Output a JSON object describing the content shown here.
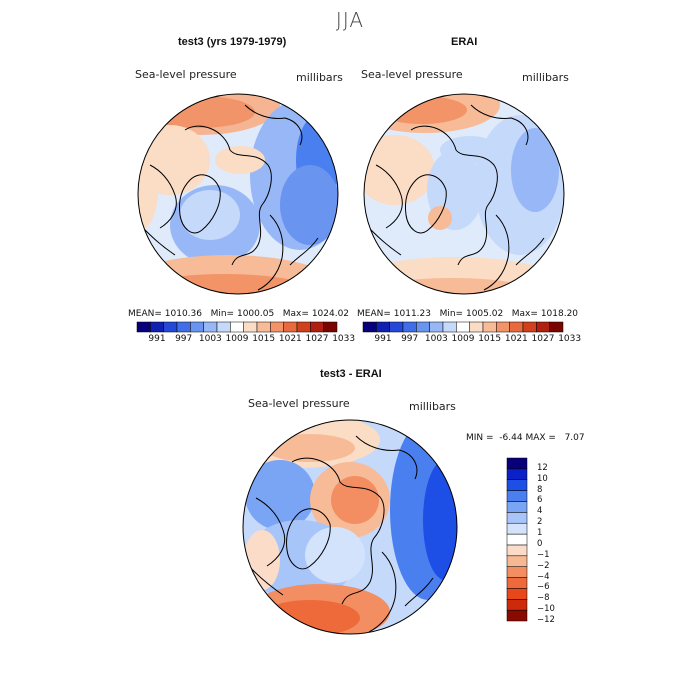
{
  "season": "JJA",
  "panels": [
    {
      "id": "test3",
      "title": "test3 (yrs 1979-1979)",
      "variable": "Sea-level pressure",
      "units": "millibars",
      "stats": {
        "mean": "1010.36",
        "min": "1000.05",
        "max": "1024.02"
      }
    },
    {
      "id": "erai",
      "title": "ERAI",
      "variable": "Sea-level pressure",
      "units": "millibars",
      "stats": {
        "mean": "1011.23",
        "min": "1005.02",
        "max": "1018.20"
      }
    },
    {
      "id": "diff",
      "title": "test3 - ERAI",
      "variable": "Sea-level pressure",
      "units": "millibars",
      "stats": {
        "min": "-6.44",
        "max": "7.07"
      }
    }
  ],
  "stat_labels": {
    "mean": "MEAN=",
    "min": "Min=",
    "max": "Max=",
    "min_upper": "MIN =",
    "max_upper": "MAX ="
  },
  "field_colorbar": {
    "colors": [
      "#08007a",
      "#1020b0",
      "#2448d8",
      "#3f6ee8",
      "#6994f0",
      "#97b7f6",
      "#c5d9fb",
      "#ffffff",
      "#fbdcc4",
      "#f7bb98",
      "#f29468",
      "#e86a3f",
      "#d2411e",
      "#b01f10",
      "#7a0500"
    ],
    "labels": [
      "991",
      "997",
      "1003",
      "1009",
      "1015",
      "1021",
      "1027",
      "1033"
    ]
  },
  "diff_colorbar": {
    "colors": [
      "#08007a",
      "#0a20c8",
      "#1d4ee6",
      "#4a7ff0",
      "#7aa4f4",
      "#a8c5f9",
      "#d4e3fc",
      "#ffffff",
      "#fbdcc8",
      "#f7b894",
      "#f38e62",
      "#ee6a3a",
      "#e8471a",
      "#cc2a0a",
      "#8a0a00"
    ],
    "labels": [
      "12",
      "10",
      "8",
      "6",
      "4",
      "2",
      "1",
      "0",
      "-1",
      "-2",
      "-4",
      "-6",
      "-8",
      "-10",
      "-12"
    ]
  }
}
